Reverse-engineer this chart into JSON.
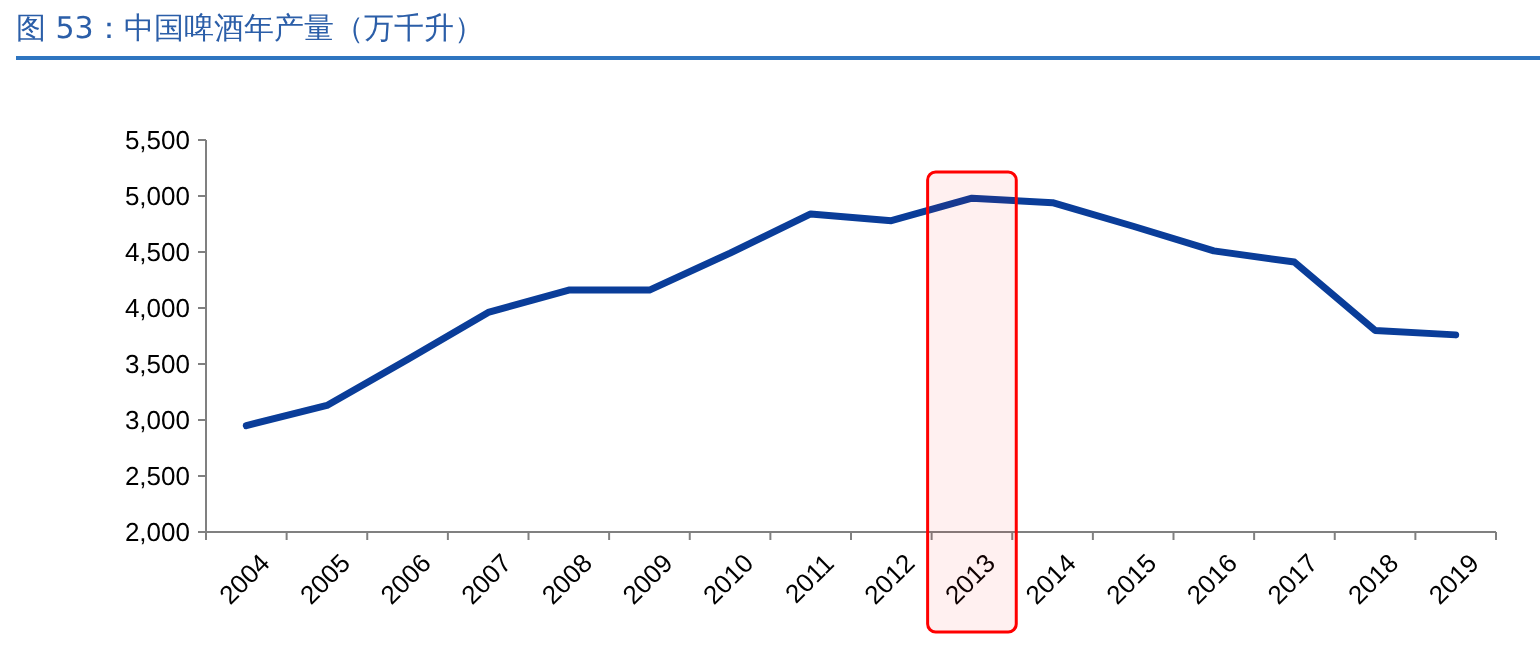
{
  "chart_data": {
    "type": "line",
    "title": "图 53：中国啤酒年产量（万千升）",
    "categories": [
      "2004",
      "2005",
      "2006",
      "2007",
      "2008",
      "2009",
      "2010",
      "2011",
      "2012",
      "2013",
      "2014",
      "2015",
      "2016",
      "2017",
      "2018",
      "2019"
    ],
    "series": [
      {
        "color": "#0a3d99",
        "values": [
          2950,
          3130,
          3540,
          3960,
          4160,
          4160,
          4490,
          4840,
          4780,
          4980,
          4940,
          4730,
          4510,
          4410,
          3800,
          3760
        ]
      }
    ],
    "ylim": [
      2000,
      5500
    ],
    "yticks": [
      {
        "value": 2000,
        "label": "2,000"
      },
      {
        "value": 2500,
        "label": "2,500"
      },
      {
        "value": 3000,
        "label": "3,000"
      },
      {
        "value": 3500,
        "label": "3,500"
      },
      {
        "value": 4000,
        "label": "4,000"
      },
      {
        "value": 4500,
        "label": "4,500"
      },
      {
        "value": 5000,
        "label": "5,000"
      },
      {
        "value": 5500,
        "label": "5,500"
      }
    ],
    "grid": false,
    "marker": "none",
    "line_style": "solid",
    "bands": [
      {
        "axis": "x",
        "from": "2013",
        "to": "2013",
        "color": "#ff0000"
      }
    ]
  }
}
